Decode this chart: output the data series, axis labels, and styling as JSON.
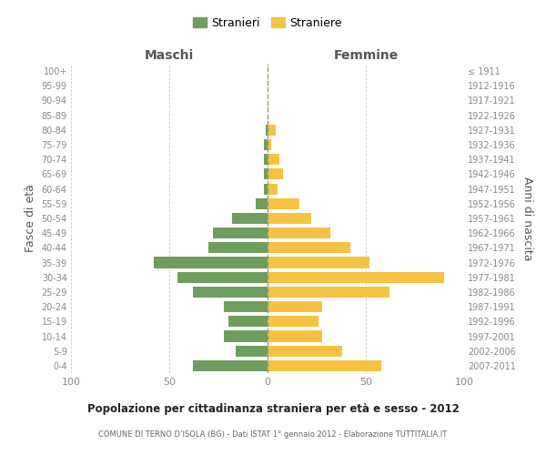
{
  "age_groups": [
    "0-4",
    "5-9",
    "10-14",
    "15-19",
    "20-24",
    "25-29",
    "30-34",
    "35-39",
    "40-44",
    "45-49",
    "50-54",
    "55-59",
    "60-64",
    "65-69",
    "70-74",
    "75-79",
    "80-84",
    "85-89",
    "90-94",
    "95-99",
    "100+"
  ],
  "birth_years": [
    "2007-2011",
    "2002-2006",
    "1997-2001",
    "1992-1996",
    "1987-1991",
    "1982-1986",
    "1977-1981",
    "1972-1976",
    "1967-1971",
    "1962-1966",
    "1957-1961",
    "1952-1956",
    "1947-1951",
    "1942-1946",
    "1937-1941",
    "1932-1936",
    "1927-1931",
    "1922-1926",
    "1917-1921",
    "1912-1916",
    "≤ 1911"
  ],
  "maschi": [
    38,
    16,
    22,
    20,
    22,
    38,
    46,
    58,
    30,
    28,
    18,
    6,
    2,
    2,
    2,
    2,
    1,
    0,
    0,
    0,
    0
  ],
  "femmine": [
    58,
    38,
    28,
    26,
    28,
    62,
    90,
    52,
    42,
    32,
    22,
    16,
    5,
    8,
    6,
    2,
    4,
    0,
    0,
    0,
    0
  ],
  "color_maschi": "#6e9e5f",
  "color_femmine": "#f5c242",
  "title": "Popolazione per cittadinanza straniera per età e sesso - 2012",
  "subtitle": "COMUNE DI TERNO D’ISOLA (BG) - Dati ISTAT 1° gennaio 2012 - Elaborazione TUTTITALIA.IT",
  "header_left": "Maschi",
  "header_right": "Femmine",
  "ylabel_left": "Fasce di età",
  "ylabel_right": "Anni di nascita",
  "legend_maschi": "Stranieri",
  "legend_femmine": "Straniere",
  "xlim": 100,
  "background_color": "#ffffff",
  "grid_color": "#cccccc"
}
